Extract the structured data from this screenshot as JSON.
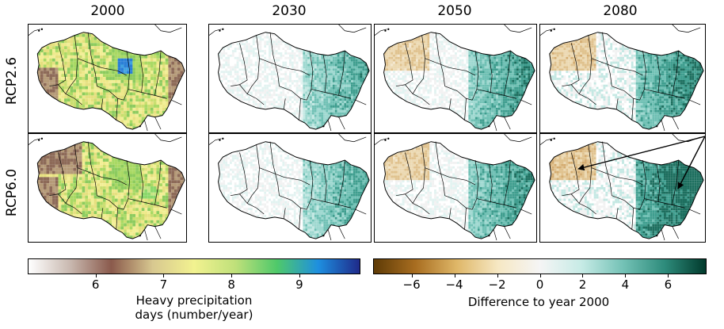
{
  "columns": [
    "2000",
    "2030",
    "2050",
    "2080"
  ],
  "rows": [
    "RCP2.6",
    "RCP6.0"
  ],
  "colorbar_left": {
    "ticks": [
      "6",
      "7",
      "8",
      "9"
    ],
    "tick_values": [
      6,
      7,
      8,
      9
    ],
    "range": [
      5.0,
      9.9
    ],
    "label_line1": "Heavy precipitation",
    "label_line2": "days (number/year)",
    "colors": [
      "#ffffff",
      "#c9b9b0",
      "#8a5a4c",
      "#d8c890",
      "#f2f290",
      "#bfe07a",
      "#4fc96a",
      "#1e8fe0",
      "#1f2a8a"
    ]
  },
  "colorbar_right": {
    "ticks": [
      "−6",
      "−4",
      "−2",
      "0",
      "2",
      "4",
      "6"
    ],
    "tick_values": [
      -6,
      -4,
      -2,
      0,
      2,
      4,
      6
    ],
    "range": [
      -7.8,
      7.8
    ],
    "label": "Difference to year 2000",
    "colors": [
      "#5e3b06",
      "#a86d20",
      "#dfb768",
      "#f6e8c4",
      "#f5f5f5",
      "#c7ebe6",
      "#74c2b6",
      "#2e8c7c",
      "#013a2c"
    ]
  }
}
